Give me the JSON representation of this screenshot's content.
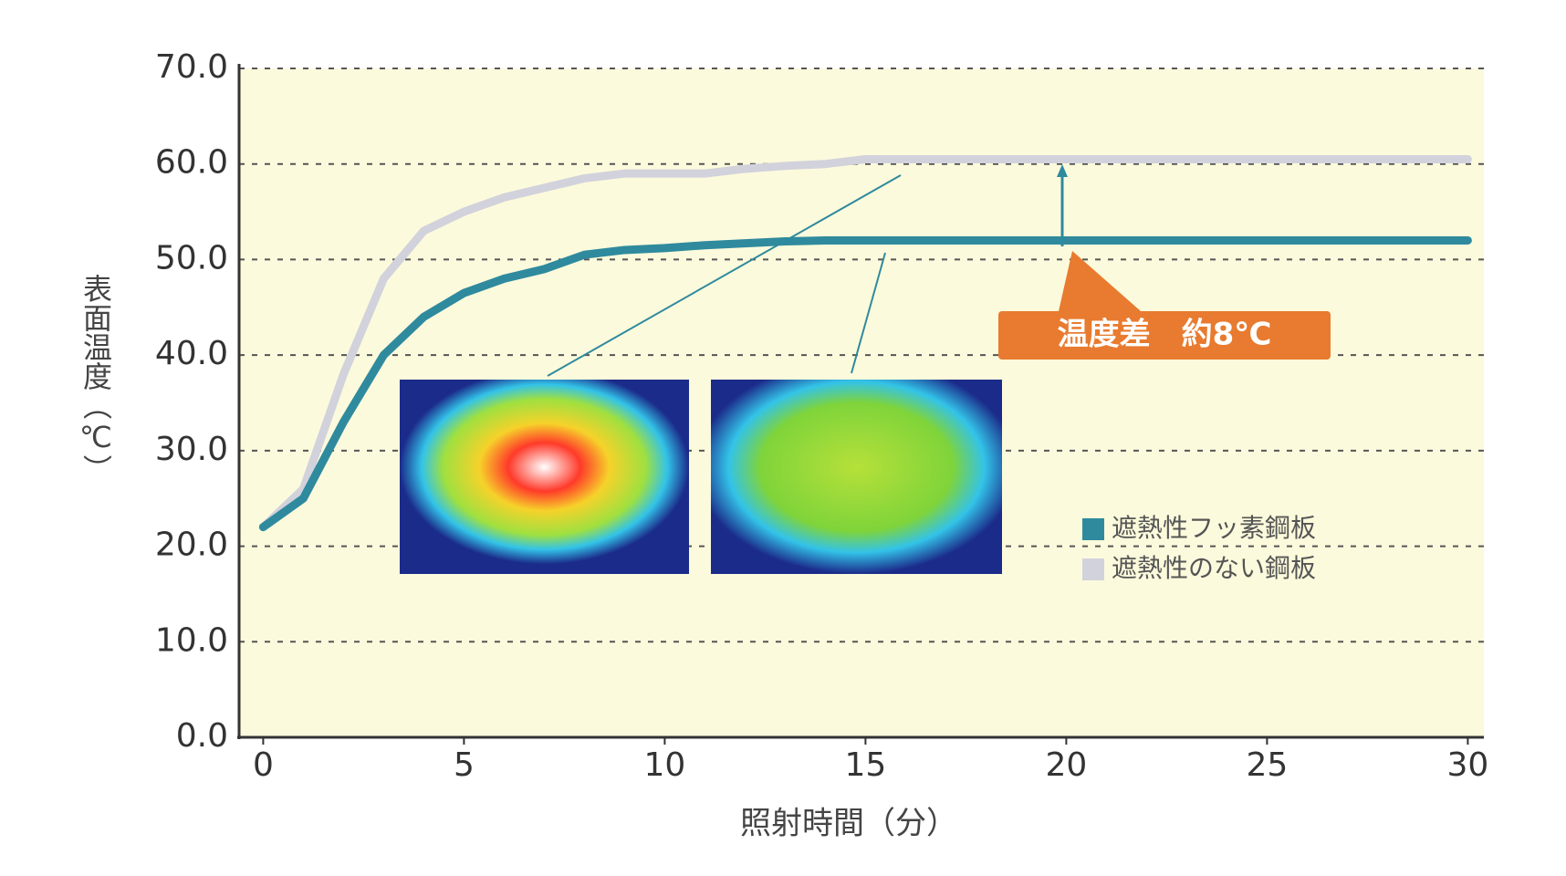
{
  "chart_data": {
    "type": "line",
    "x_label": "照射時間（分）",
    "y_label": "表面温度（℃）",
    "annotation": "温度差　約8℃",
    "x": [
      0,
      1,
      2,
      3,
      4,
      5,
      6,
      7,
      8,
      9,
      10,
      11,
      12,
      13,
      14,
      15,
      16,
      18,
      20,
      25,
      30
    ],
    "series": [
      {
        "name": "遮熱性フッ素鋼板",
        "color": "#2f8a9e",
        "values": [
          22,
          25,
          33,
          40,
          44,
          46.5,
          48,
          49,
          50.5,
          51,
          51.2,
          51.5,
          51.7,
          51.9,
          52,
          52,
          52,
          52,
          52,
          52,
          52
        ]
      },
      {
        "name": "遮熱性のない鋼板",
        "color": "#d2d2dc",
        "values": [
          22,
          26,
          38,
          48,
          53,
          55,
          56.5,
          57.5,
          58.5,
          59,
          59,
          59,
          59.5,
          59.8,
          60,
          60.5,
          60.5,
          60.5,
          60.5,
          60.5,
          60.5
        ]
      }
    ],
    "xlim": [
      -0.6,
      30.4
    ],
    "ylim": [
      0,
      70
    ],
    "xticks": [
      0,
      5,
      10,
      15,
      20,
      25,
      30
    ],
    "yticks": [
      {
        "value": 0,
        "label": "0.0"
      },
      {
        "value": 10,
        "label": "10.0"
      },
      {
        "value": 20,
        "label": "20.0"
      },
      {
        "value": 30,
        "label": "30.0"
      },
      {
        "value": 40,
        "label": "40.0"
      },
      {
        "value": 50,
        "label": "50.0"
      },
      {
        "value": 60,
        "label": "60.0"
      },
      {
        "value": 70,
        "label": "70.0"
      }
    ],
    "grid": true
  }
}
